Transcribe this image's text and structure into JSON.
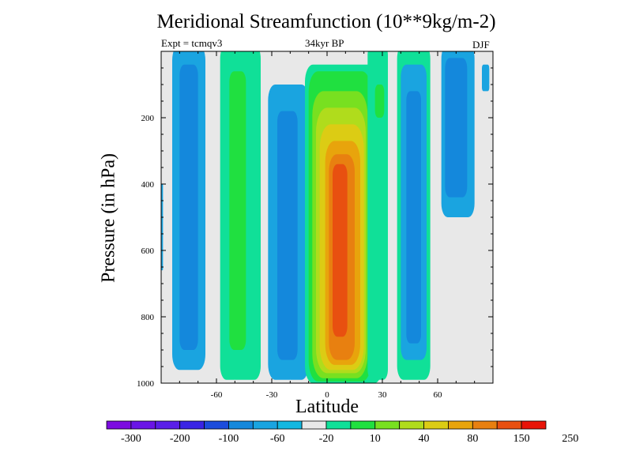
{
  "chart_data": {
    "type": "contour",
    "title": "Meridional Streamfunction (10**9kg/m-2)",
    "subtitle_left": "Expt = tcmqv3",
    "subtitle_center": "34kyr BP",
    "subtitle_right": "DJF",
    "xlabel": "Latitude",
    "ylabel": "Pressure (in hPa)",
    "xlim": [
      -90,
      90
    ],
    "ylim": [
      1000,
      0
    ],
    "x_ticks": [
      -60,
      -30,
      0,
      30,
      60
    ],
    "y_ticks": [
      200,
      400,
      600,
      800,
      1000
    ],
    "colorbar": {
      "labels": [
        "-300",
        "-200",
        "-100",
        "-60",
        "-20",
        "10",
        "40",
        "80",
        "150",
        "250"
      ],
      "colors": [
        "#7c0ce0",
        "#6a14e6",
        "#5a1ee8",
        "#3a24e4",
        "#1c4cdc",
        "#1488dc",
        "#1aa4e0",
        "#12b8e0",
        "#e8e8e8",
        "#10e098",
        "#20e040",
        "#78e020",
        "#b0dc1c",
        "#dccc14",
        "#e8a40c",
        "#e88010",
        "#e85010",
        "#e81408"
      ]
    },
    "fields": [
      {
        "name": "band1",
        "lat_range": [
          -84,
          -66
        ],
        "p_range": [
          0,
          960
        ],
        "peak_level": "-20"
      },
      {
        "name": "band2",
        "lat_range": [
          -58,
          -36
        ],
        "p_range": [
          0,
          990
        ],
        "peak_level": "10"
      },
      {
        "name": "band3",
        "lat_range": [
          -32,
          -10
        ],
        "p_range": [
          100,
          990
        ],
        "peak_level": "-20"
      },
      {
        "name": "core",
        "lat_range": [
          -10,
          28
        ],
        "p_range": [
          60,
          990
        ],
        "peak_level": "250"
      },
      {
        "name": "band5",
        "lat_range": [
          22,
          34
        ],
        "p_range": [
          0,
          990
        ],
        "peak_level": "10"
      },
      {
        "name": "band6",
        "lat_range": [
          38,
          56
        ],
        "p_range": [
          0,
          990
        ],
        "peak_level": "-60"
      },
      {
        "name": "band7",
        "lat_range": [
          62,
          80
        ],
        "p_range": [
          0,
          500
        ],
        "peak_level": "-60"
      }
    ]
  }
}
